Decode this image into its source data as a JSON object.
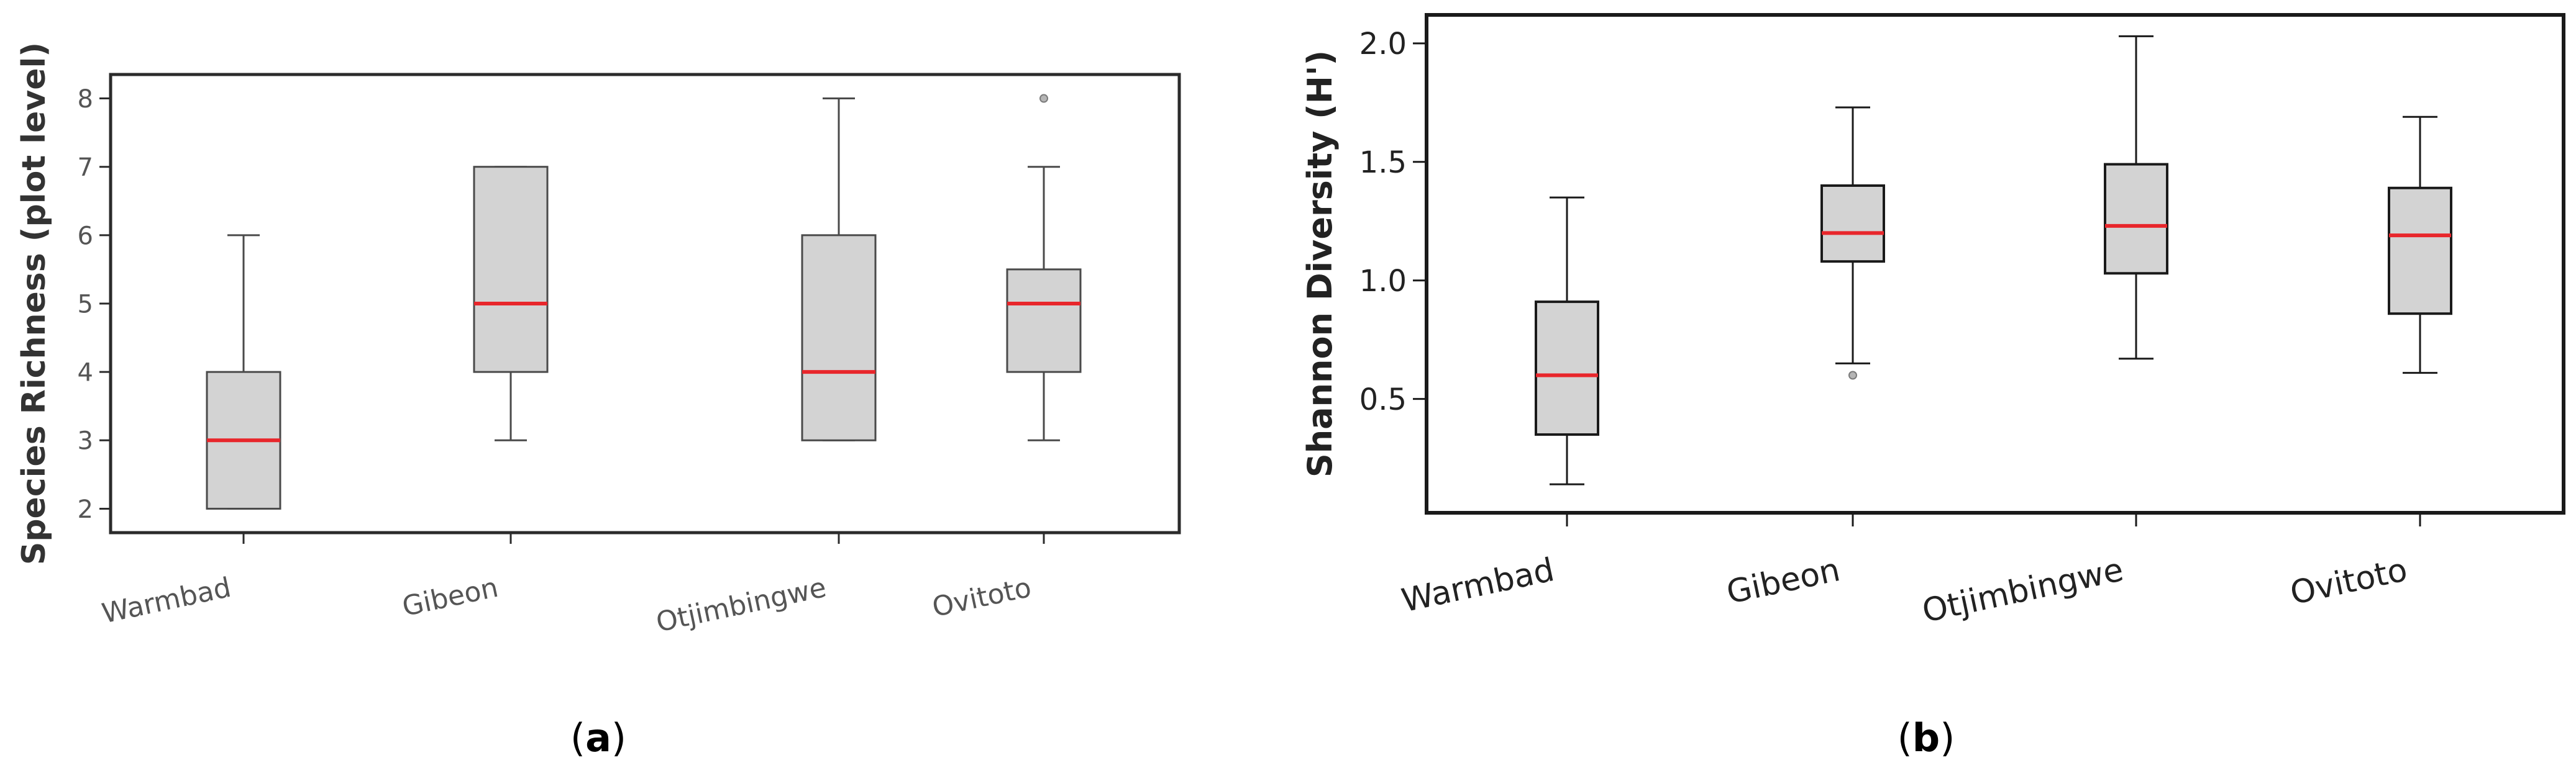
{
  "chart_data": [
    {
      "type": "boxplot",
      "panel_label": "(a)",
      "panel_letter": "a",
      "xlabel": "",
      "ylabel": "Species Richness (plot level)",
      "ylim": [
        1.65,
        8.35
      ],
      "yticks": [
        2,
        3,
        4,
        5,
        6,
        7,
        8
      ],
      "ytick_labels": [
        "2",
        "3",
        "4",
        "5",
        "6",
        "7",
        "8"
      ],
      "categories": [
        "Warmbad",
        "Gibeon",
        "Otjimbingwe",
        "Ovitoto"
      ],
      "boxes": [
        {
          "name": "Warmbad",
          "whisker_low": 2,
          "q1": 2,
          "median": 3,
          "q3": 4,
          "whisker_high": 6,
          "outliers": []
        },
        {
          "name": "Gibeon",
          "whisker_low": 3,
          "q1": 4,
          "median": 5,
          "q3": 7,
          "whisker_high": 7,
          "outliers": []
        },
        {
          "name": "Otjimbingwe",
          "whisker_low": 3,
          "q1": 3,
          "median": 4,
          "q3": 6,
          "whisker_high": 8,
          "outliers": []
        },
        {
          "name": "Ovitoto",
          "whisker_low": 3,
          "q1": 4,
          "median": 5,
          "q3": 5.5,
          "whisker_high": 7,
          "outliers": [
            8
          ]
        }
      ],
      "colors": {
        "box_fill": "#d3d3d3",
        "median": "#e8262b",
        "whisker": "#4a4a4a",
        "frame": "#2b2b2b",
        "tick_text": "#555555",
        "label_text": "#333333"
      }
    },
    {
      "type": "boxplot",
      "panel_label": "(b)",
      "panel_letter": "b",
      "xlabel": "",
      "ylabel": "Shannon Diversity (H')",
      "ylim": [
        0.02,
        2.12
      ],
      "yticks": [
        0.5,
        1.0,
        1.5,
        2.0
      ],
      "ytick_labels": [
        "0.5",
        "1.0",
        "1.5",
        "2.0"
      ],
      "categories": [
        "Warmbad",
        "Gibeon",
        "Otjimbingwe",
        "Ovitoto"
      ],
      "boxes": [
        {
          "name": "Warmbad",
          "whisker_low": 0.14,
          "q1": 0.35,
          "median": 0.6,
          "q3": 0.91,
          "whisker_high": 1.35,
          "outliers": []
        },
        {
          "name": "Gibeon",
          "whisker_low": 0.65,
          "q1": 1.08,
          "median": 1.2,
          "q3": 1.4,
          "whisker_high": 1.73,
          "outliers": [
            0.6
          ]
        },
        {
          "name": "Otjimbingwe",
          "whisker_low": 0.67,
          "q1": 1.03,
          "median": 1.23,
          "q3": 1.49,
          "whisker_high": 2.03,
          "outliers": []
        },
        {
          "name": "Ovitoto",
          "whisker_low": 0.61,
          "q1": 0.86,
          "median": 1.19,
          "q3": 1.39,
          "whisker_high": 1.69,
          "outliers": []
        }
      ],
      "colors": {
        "box_fill": "#d3d3d3",
        "median": "#e8262b",
        "whisker": "#1a1a1a",
        "frame": "#1a1a1a",
        "tick_text": "#222222",
        "label_text": "#222222"
      }
    }
  ]
}
